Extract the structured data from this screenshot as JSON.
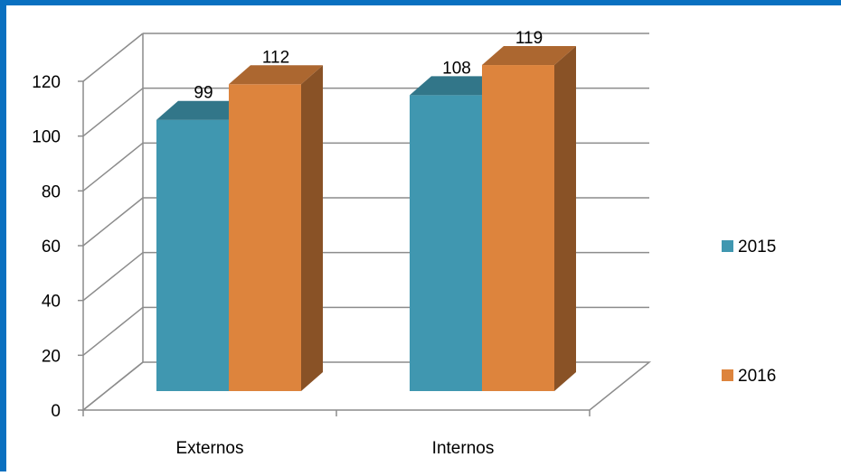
{
  "chart_data": {
    "type": "bar",
    "categories": [
      "Externos",
      "Internos"
    ],
    "series": [
      {
        "name": "2015",
        "values": [
          99,
          108
        ],
        "color": "#4097b0"
      },
      {
        "name": "2016",
        "values": [
          112,
          119
        ],
        "color": "#dd843d"
      }
    ],
    "ylim": [
      0,
      120
    ],
    "yticks": [
      "0",
      "20",
      "40",
      "60",
      "80",
      "100",
      "120"
    ],
    "grid": true,
    "legend_position": "right"
  }
}
